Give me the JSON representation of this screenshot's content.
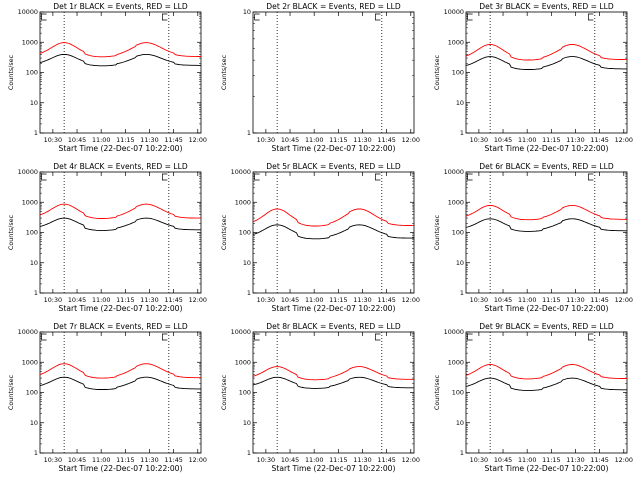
{
  "figure": {
    "legend_box_glyph": "rect-icon"
  },
  "chart_data": [
    {
      "id": "det1",
      "type": "line",
      "title": "Det 1r BLACK = Events, RED = LLD",
      "xlabel": "Start Time (22-Dec-07 10:22:00)",
      "ylabel": "Counts/sec",
      "yscale": "log",
      "ylim": [
        1,
        10000
      ],
      "yticks": [
        "1",
        "10",
        "100",
        "1000",
        "10000"
      ],
      "xticks": [
        "10:30",
        "10:45",
        "11:00",
        "11:15",
        "11:30",
        "11:45",
        "12:00"
      ],
      "xlim_minutes": [
        0,
        100
      ],
      "vlines_minutes": [
        15,
        80
      ],
      "series": [
        {
          "name": "Events",
          "color": "#000000",
          "base": 190,
          "amp": 0.32,
          "step": 0.78
        },
        {
          "name": "LLD",
          "color": "#ff0000",
          "base": 370,
          "amp": 0.42,
          "step": 0.8
        }
      ]
    },
    {
      "id": "det2",
      "type": "line",
      "title": "Det 2r BLACK = Events, RED = LLD",
      "xlabel": "Start Time (22-Dec-07 10:22:00)",
      "ylabel": "Counts/sec",
      "yscale": "log",
      "ylim": [
        1,
        10
      ],
      "yticks": [
        "1",
        "10"
      ],
      "xticks": [
        "10:30",
        "10:45",
        "11:00",
        "11:15",
        "11:30",
        "11:45",
        "12:00"
      ],
      "xlim_minutes": [
        0,
        100
      ],
      "vlines_minutes": [
        15,
        80
      ],
      "series": []
    },
    {
      "id": "det3",
      "type": "line",
      "title": "Det 3r BLACK = Events, RED = LLD",
      "xlabel": "Start Time (22-Dec-07 10:22:00)",
      "ylabel": "Counts/sec",
      "yscale": "log",
      "ylim": [
        1,
        10000
      ],
      "yticks": [
        "1",
        "10",
        "100",
        "1000",
        "10000"
      ],
      "xticks": [
        "10:30",
        "10:45",
        "11:00",
        "11:15",
        "11:30",
        "11:45",
        "12:00"
      ],
      "xlim_minutes": [
        0,
        100
      ],
      "vlines_minutes": [
        15,
        80
      ],
      "series": [
        {
          "name": "Events",
          "color": "#000000",
          "base": 150,
          "amp": 0.35,
          "step": 0.72
        },
        {
          "name": "LLD",
          "color": "#ff0000",
          "base": 300,
          "amp": 0.45,
          "step": 0.75
        }
      ]
    },
    {
      "id": "det4",
      "type": "line",
      "title": "Det 4r BLACK = Events, RED = LLD",
      "xlabel": "Start Time (22-Dec-07 10:22:00)",
      "ylabel": "Counts/sec",
      "yscale": "log",
      "ylim": [
        1,
        10000
      ],
      "yticks": [
        "1",
        "10",
        "100",
        "1000",
        "10000"
      ],
      "xticks": [
        "10:30",
        "10:45",
        "11:00",
        "11:15",
        "11:30",
        "11:45",
        "12:00"
      ],
      "xlim_minutes": [
        0,
        100
      ],
      "vlines_minutes": [
        15,
        80
      ],
      "series": [
        {
          "name": "Events",
          "color": "#000000",
          "base": 140,
          "amp": 0.33,
          "step": 0.72
        },
        {
          "name": "LLD",
          "color": "#ff0000",
          "base": 330,
          "amp": 0.42,
          "step": 0.78
        }
      ]
    },
    {
      "id": "det5",
      "type": "line",
      "title": "Det 5r BLACK = Events, RED = LLD",
      "xlabel": "Start Time (22-Dec-07 10:22:00)",
      "ylabel": "Counts/sec",
      "yscale": "log",
      "ylim": [
        1,
        10000
      ],
      "yticks": [
        "1",
        "10",
        "100",
        "1000",
        "10000"
      ],
      "xticks": [
        "10:30",
        "10:45",
        "11:00",
        "11:15",
        "11:30",
        "11:45",
        "12:00"
      ],
      "xlim_minutes": [
        0,
        100
      ],
      "vlines_minutes": [
        15,
        80
      ],
      "series": [
        {
          "name": "Events",
          "color": "#000000",
          "base": 75,
          "amp": 0.38,
          "step": 0.7
        },
        {
          "name": "LLD",
          "color": "#ff0000",
          "base": 190,
          "amp": 0.5,
          "step": 0.75
        }
      ]
    },
    {
      "id": "det6",
      "type": "line",
      "title": "Det 6r BLACK = Events, RED = LLD",
      "xlabel": "Start Time (22-Dec-07 10:22:00)",
      "ylabel": "Counts/sec",
      "yscale": "log",
      "ylim": [
        1,
        10000
      ],
      "yticks": [
        "1",
        "10",
        "100",
        "1000",
        "10000"
      ],
      "xticks": [
        "10:30",
        "10:45",
        "11:00",
        "11:15",
        "11:30",
        "11:45",
        "12:00"
      ],
      "xlim_minutes": [
        0,
        100
      ],
      "vlines_minutes": [
        15,
        80
      ],
      "series": [
        {
          "name": "Events",
          "color": "#000000",
          "base": 130,
          "amp": 0.34,
          "step": 0.72
        },
        {
          "name": "LLD",
          "color": "#ff0000",
          "base": 300,
          "amp": 0.42,
          "step": 0.78
        }
      ]
    },
    {
      "id": "det7",
      "type": "line",
      "title": "Det 7r BLACK = Events, RED = LLD",
      "xlabel": "Start Time (22-Dec-07 10:22:00)",
      "ylabel": "Counts/sec",
      "yscale": "log",
      "ylim": [
        1,
        10000
      ],
      "yticks": [
        "1",
        "10",
        "100",
        "1000",
        "10000"
      ],
      "xticks": [
        "10:30",
        "10:45",
        "11:00",
        "11:15",
        "11:30",
        "11:45",
        "12:00"
      ],
      "xlim_minutes": [
        0,
        100
      ],
      "vlines_minutes": [
        15,
        80
      ],
      "series": [
        {
          "name": "Events",
          "color": "#000000",
          "base": 150,
          "amp": 0.33,
          "step": 0.72
        },
        {
          "name": "LLD",
          "color": "#ff0000",
          "base": 340,
          "amp": 0.42,
          "step": 0.78
        }
      ]
    },
    {
      "id": "det8",
      "type": "line",
      "title": "Det 8r BLACK = Events, RED = LLD",
      "xlabel": "Start Time (22-Dec-07 10:22:00)",
      "ylabel": "Counts/sec",
      "yscale": "log",
      "ylim": [
        1,
        10000
      ],
      "yticks": [
        "1",
        "10",
        "100",
        "1000",
        "10000"
      ],
      "xticks": [
        "10:30",
        "10:45",
        "11:00",
        "11:15",
        "11:30",
        "11:45",
        "12:00"
      ],
      "xlim_minutes": [
        0,
        100
      ],
      "vlines_minutes": [
        15,
        80
      ],
      "series": [
        {
          "name": "Events",
          "color": "#000000",
          "base": 160,
          "amp": 0.3,
          "step": 0.75
        },
        {
          "name": "LLD",
          "color": "#ff0000",
          "base": 300,
          "amp": 0.38,
          "step": 0.78
        }
      ]
    },
    {
      "id": "det9",
      "type": "line",
      "title": "Det 9r BLACK = Events, RED = LLD",
      "xlabel": "Start Time (22-Dec-07 10:22:00)",
      "ylabel": "Counts/sec",
      "yscale": "log",
      "ylim": [
        1,
        10000
      ],
      "yticks": [
        "1",
        "10",
        "100",
        "1000",
        "10000"
      ],
      "xticks": [
        "10:30",
        "10:45",
        "11:00",
        "11:15",
        "11:30",
        "11:45",
        "12:00"
      ],
      "xlim_minutes": [
        0,
        100
      ],
      "vlines_minutes": [
        15,
        80
      ],
      "series": [
        {
          "name": "Events",
          "color": "#000000",
          "base": 140,
          "amp": 0.33,
          "step": 0.72
        },
        {
          "name": "LLD",
          "color": "#ff0000",
          "base": 320,
          "amp": 0.42,
          "step": 0.78
        }
      ]
    }
  ]
}
